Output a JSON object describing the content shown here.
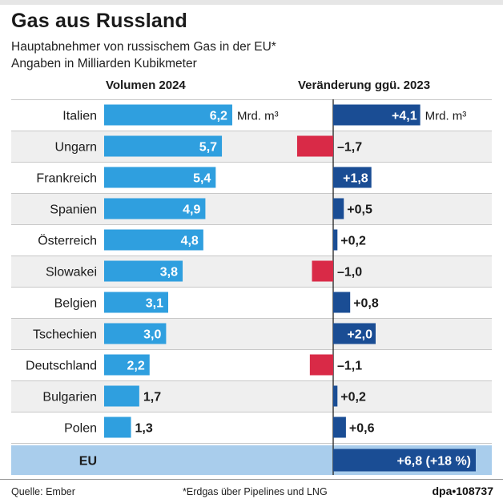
{
  "header": {
    "title": "Gas aus Russland",
    "subtitle1": "Hauptabnehmer von russischem Gas in der EU*",
    "subtitle2": "Angaben in Milliarden Kubikmeter"
  },
  "columns": {
    "left": "Volumen 2024",
    "right": "Veränderung ggü. 2023"
  },
  "chart_data": {
    "type": "bar",
    "title": "Gas aus Russland",
    "categories": [
      "Italien",
      "Ungarn",
      "Frankreich",
      "Spanien",
      "Österreich",
      "Slowakei",
      "Belgien",
      "Tschechien",
      "Deutschland",
      "Bulgarien",
      "Polen"
    ],
    "series": [
      {
        "name": "Volumen 2024",
        "values": [
          6.2,
          5.7,
          5.4,
          4.9,
          4.8,
          3.8,
          3.1,
          3.0,
          2.2,
          1.7,
          1.3
        ],
        "labels": [
          "6,2",
          "5,7",
          "5,4",
          "4,9",
          "4,8",
          "3,8",
          "3,1",
          "3,0",
          "2,2",
          "1,7",
          "1,3"
        ]
      },
      {
        "name": "Veränderung ggü. 2023",
        "values": [
          4.1,
          -1.7,
          1.8,
          0.5,
          0.2,
          -1.0,
          0.8,
          2.0,
          -1.1,
          0.2,
          0.6
        ],
        "labels": [
          "+4,1",
          "–1,7",
          "+1,8",
          "+0,5",
          "+0,2",
          "–1,0",
          "+0,8",
          "+2,0",
          "–1,1",
          "+0,2",
          "+0,6"
        ]
      }
    ],
    "unit_label": "Mrd. m³",
    "total": {
      "label": "EU",
      "change": 6.8,
      "change_label": "+6,8 (+18 %)"
    },
    "colors": {
      "volume": "#2f9fdf",
      "increase": "#1a4d94",
      "decrease": "#d92a47",
      "total_band": "#a9cdec",
      "stripe": "#efefef"
    }
  },
  "footer": {
    "source": "Quelle: Ember",
    "footnote": "*Erdgas über Pipelines und LNG",
    "credit": "dpa•108737"
  }
}
